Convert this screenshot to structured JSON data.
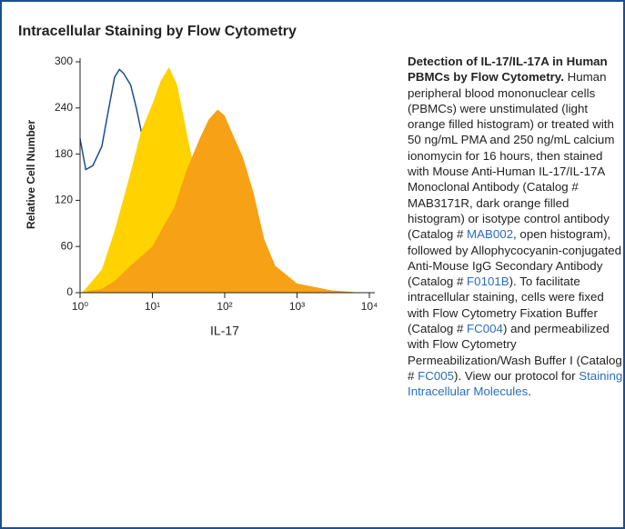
{
  "panel": {
    "title": "Intracellular Staining by Flow Cytometry"
  },
  "chart_data": {
    "type": "histogram-overlay",
    "xlabel": "IL-17",
    "ylabel": "Relative Cell Number",
    "xscale": "log",
    "xlim": [
      1,
      10000
    ],
    "xticks": [
      {
        "value": 1,
        "label": "10⁰"
      },
      {
        "value": 10,
        "label": "10¹"
      },
      {
        "value": 100,
        "label": "10²"
      },
      {
        "value": 1000,
        "label": "10³"
      },
      {
        "value": 10000,
        "label": "10⁴"
      }
    ],
    "ylim": [
      0,
      300
    ],
    "yticks": [
      0,
      60,
      120,
      180,
      240,
      300
    ],
    "series": [
      {
        "style": "line",
        "color": "#1b4f8a",
        "x": [
          1,
          1.2,
          1.5,
          2,
          2.5,
          3,
          3.5,
          4,
          5,
          6,
          7,
          9,
          12,
          15
        ],
        "values": [
          200,
          160,
          165,
          190,
          240,
          280,
          290,
          285,
          270,
          240,
          210,
          140,
          50,
          0
        ]
      },
      {
        "style": "filled",
        "color": "#ffd200",
        "x": [
          1,
          1.12,
          2,
          3,
          4.8,
          7,
          10,
          13,
          17,
          22,
          31,
          40,
          56,
          80,
          115,
          200,
          370,
          1000
        ],
        "values": [
          0,
          2,
          30,
          80,
          150,
          210,
          245,
          275,
          293,
          270,
          200,
          150,
          100,
          60,
          30,
          12,
          5,
          0
        ]
      },
      {
        "style": "filled",
        "color": "#f7a116",
        "x": [
          1,
          2,
          3,
          5,
          10,
          15,
          20,
          30,
          45,
          60,
          80,
          100,
          130,
          180,
          250,
          350,
          500,
          1000,
          3000,
          8000
        ],
        "values": [
          0,
          5,
          15,
          35,
          60,
          90,
          110,
          160,
          200,
          225,
          238,
          230,
          205,
          175,
          130,
          70,
          35,
          12,
          3,
          0
        ]
      }
    ]
  },
  "caption": [
    {
      "text": "Detection of IL-17/IL-17A in Human PBMCs by Flow Cytometry.",
      "bold": true
    },
    {
      "text": " Human peripheral blood mononuclear cells (PBMCs) were unstimulated (light orange filled histogram) or treated with 50 ng/mL PMA and 250 ng/mL calcium ionomycin for 16 hours, then stained with Mouse Anti-Human IL-17/IL-17A Monoclonal Antibody (Catalog # MAB3171R, dark orange filled histogram) or isotype control antibody (Catalog # "
    },
    {
      "text": "MAB002",
      "link": true
    },
    {
      "text": ", open histogram), followed by Allophycocyanin-conjugated Anti-Mouse IgG Secondary Antibody (Catalog # "
    },
    {
      "text": "F0101B",
      "link": true
    },
    {
      "text": "). To facilitate intracellular staining, cells were fixed with Flow Cytometry Fixation Buffer (Catalog # "
    },
    {
      "text": "FC004",
      "link": true
    },
    {
      "text": ") and permeabilized with Flow Cytometry Permeabilization/Wash Buffer I (Catalog # "
    },
    {
      "text": "FC005",
      "link": true
    },
    {
      "text": "). View our protocol for "
    },
    {
      "text": "Staining Intracellular Molecules",
      "link": true
    },
    {
      "text": "."
    }
  ]
}
